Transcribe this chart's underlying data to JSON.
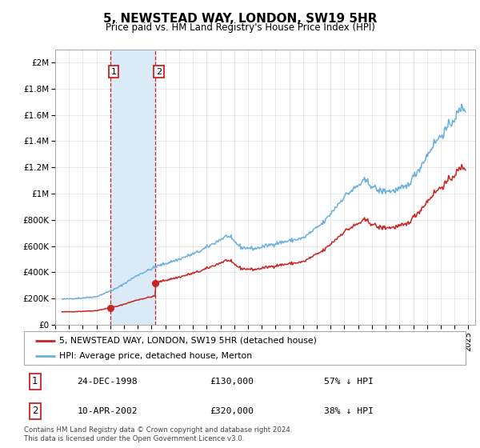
{
  "title": "5, NEWSTEAD WAY, LONDON, SW19 5HR",
  "subtitle": "Price paid vs. HM Land Registry's House Price Index (HPI)",
  "legend_line1": "5, NEWSTEAD WAY, LONDON, SW19 5HR (detached house)",
  "legend_line2": "HPI: Average price, detached house, Merton",
  "footer": "Contains HM Land Registry data © Crown copyright and database right 2024.\nThis data is licensed under the Open Government Licence v3.0.",
  "transactions": [
    {
      "id": 1,
      "date": "24-DEC-1998",
      "price": 130000,
      "hpi_rel": "57% ↓ HPI",
      "year_dec": 1998.98
    },
    {
      "id": 2,
      "date": "10-APR-2002",
      "price": 320000,
      "hpi_rel": "38% ↓ HPI",
      "year_dec": 2002.27
    }
  ],
  "hpi_color": "#6ab0de",
  "price_color": "#cc2222",
  "highlight_color": "#daeaf7",
  "y_ticks": [
    0,
    200000,
    400000,
    600000,
    800000,
    1000000,
    1200000,
    1400000,
    1600000,
    1800000,
    2000000
  ],
  "y_tick_labels": [
    "£0",
    "£200K",
    "£400K",
    "£600K",
    "£800K",
    "£1M",
    "£1.2M",
    "£1.4M",
    "£1.6M",
    "£1.8M",
    "£2M"
  ],
  "x_start": 1995,
  "x_end": 2025.5,
  "x_ticks": [
    1995,
    1996,
    1997,
    1998,
    1999,
    2000,
    2001,
    2002,
    2003,
    2004,
    2005,
    2006,
    2007,
    2008,
    2009,
    2010,
    2011,
    2012,
    2013,
    2014,
    2015,
    2016,
    2017,
    2018,
    2019,
    2020,
    2021,
    2022,
    2023,
    2024,
    2025
  ],
  "hpi_anchors_x": [
    1995.5,
    1997.0,
    1998.0,
    1999.5,
    2001.0,
    2002.5,
    2004.0,
    2005.5,
    2007.5,
    2008.5,
    2009.5,
    2011.0,
    2013.0,
    2014.5,
    2016.0,
    2017.5,
    2018.5,
    2019.5,
    2020.5,
    2021.5,
    2022.5,
    2023.5,
    2024.5
  ],
  "hpi_anchors_y": [
    195000,
    205000,
    215000,
    280000,
    380000,
    450000,
    500000,
    560000,
    680000,
    590000,
    580000,
    620000,
    660000,
    780000,
    980000,
    1100000,
    1020000,
    1020000,
    1050000,
    1200000,
    1380000,
    1500000,
    1650000
  ]
}
